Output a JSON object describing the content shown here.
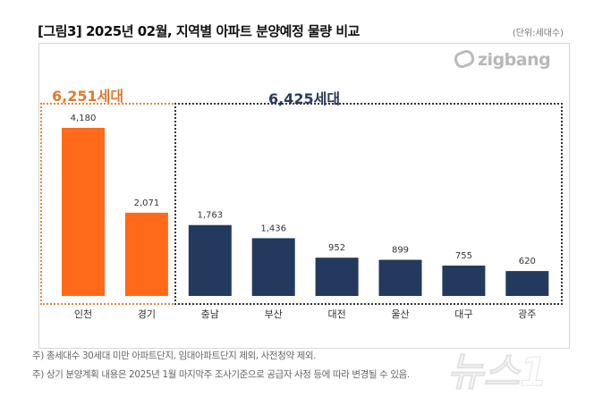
{
  "title": "[그림3] 2025년 02월, 지역별 아파트 분양예정 물량 비교",
  "unit": "(단위:세대수)",
  "logo": "zigbang",
  "watermark": "뉴스1",
  "groups": [
    {
      "label": "6,251세대",
      "color": "#E07A30"
    },
    {
      "label": "6,425세대",
      "color": "#2A3A5A"
    }
  ],
  "footnotes": [
    "주) 총세대수 30세대 미만 아파트단지, 임대아파트단지 제외, 사전청약 제외.",
    "주) 상기 분양계획 내용은 2025년 1월  마지막주  조사기준으로 공급자 사정 등에 따라 변경될 수 있음."
  ],
  "chart_data": {
    "type": "bar",
    "title": "[그림3] 2025년 02월, 지역별 아파트 분양예정 물량 비교",
    "categories": [
      "인천",
      "경기",
      "충남",
      "부산",
      "대전",
      "울산",
      "대구",
      "광주"
    ],
    "values": [
      4180,
      2071,
      1763,
      1436,
      952,
      899,
      755,
      620
    ],
    "value_labels": [
      "4,180",
      "2,071",
      "1,763",
      "1,436",
      "952",
      "899",
      "755",
      "620"
    ],
    "colors": [
      "#FF6A1A",
      "#FF6A1A",
      "#233A5E",
      "#233A5E",
      "#233A5E",
      "#233A5E",
      "#233A5E",
      "#233A5E"
    ],
    "ylim": [
      0,
      4800
    ],
    "grid": false
  }
}
